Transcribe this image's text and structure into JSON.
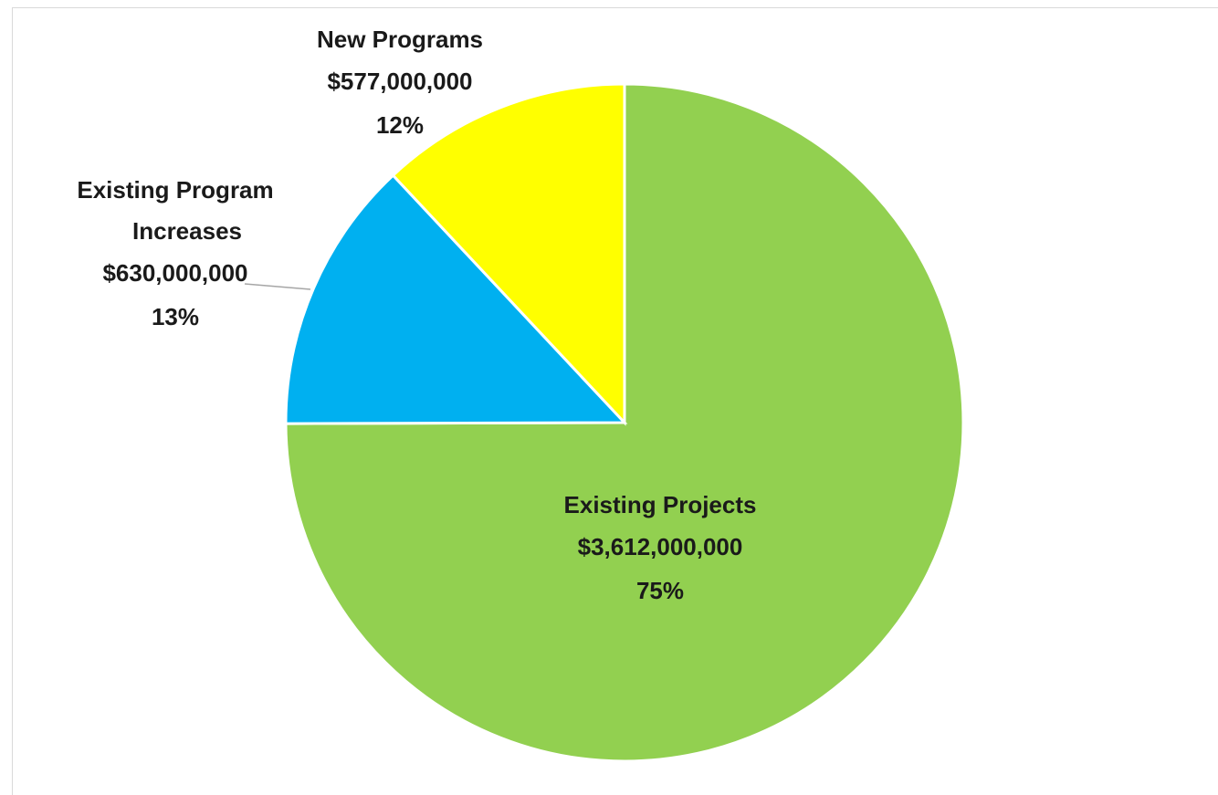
{
  "chart_data": {
    "type": "pie",
    "categories": [
      "Existing Projects",
      "Existing Program Increases",
      "New Programs"
    ],
    "values": [
      3612000000,
      630000000,
      577000000
    ],
    "value_labels": [
      "$3,612,000,000",
      "$630,000,000",
      "$577,000,000"
    ],
    "percentages": [
      75,
      13,
      12
    ],
    "percentage_labels": [
      "75%",
      "13%",
      "12%"
    ],
    "colors": [
      "#92d050",
      "#00b0f0",
      "#ffff00"
    ]
  }
}
